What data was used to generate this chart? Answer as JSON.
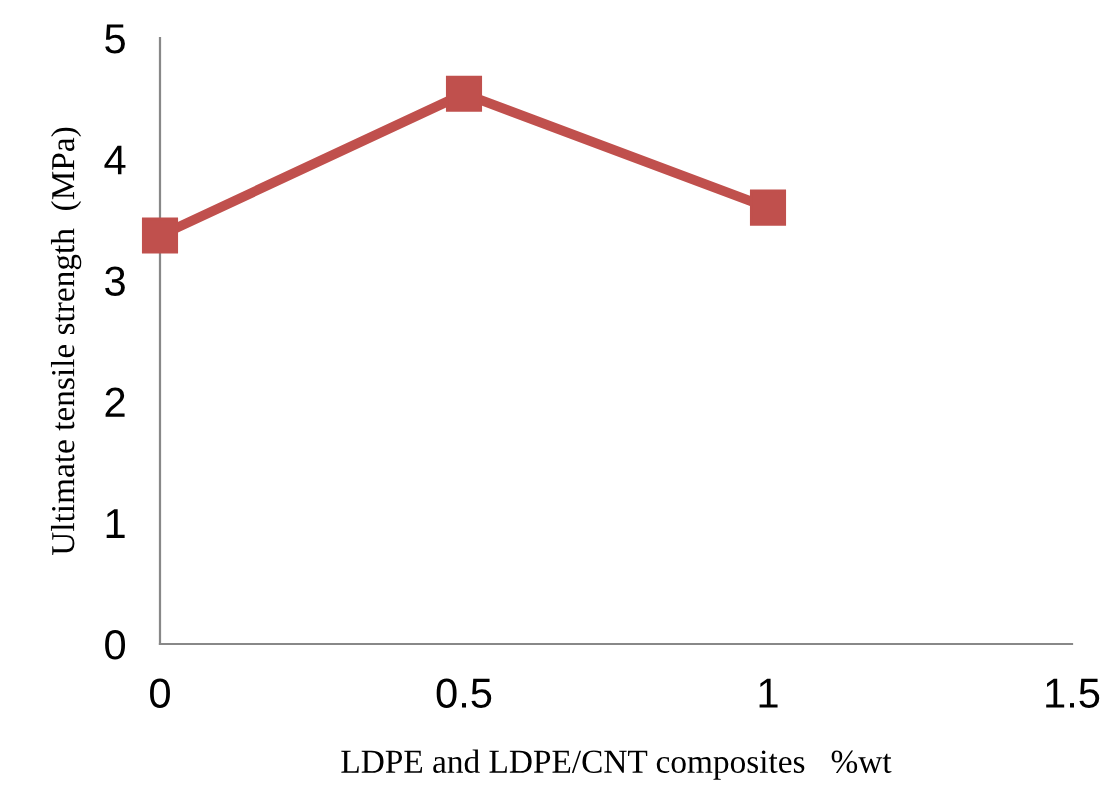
{
  "chart_data": {
    "type": "line",
    "xlabel": "LDPE and LDPE/CNT composites   %wt",
    "ylabel": "Ultimate tensile strength  (MPa)",
    "x": [
      0,
      0.5,
      1
    ],
    "series": [
      {
        "color": "#c0504d",
        "values": [
          3.37,
          4.54,
          3.6
        ]
      }
    ],
    "xlim": [
      0,
      1.5
    ],
    "xticks": [
      0,
      0.5,
      1,
      1.5
    ],
    "ylim": [
      0,
      5
    ],
    "yticks": [
      0,
      1,
      2,
      3,
      4,
      5
    ],
    "marker": "square",
    "line_style": "solid",
    "grid": false,
    "legend": false
  }
}
